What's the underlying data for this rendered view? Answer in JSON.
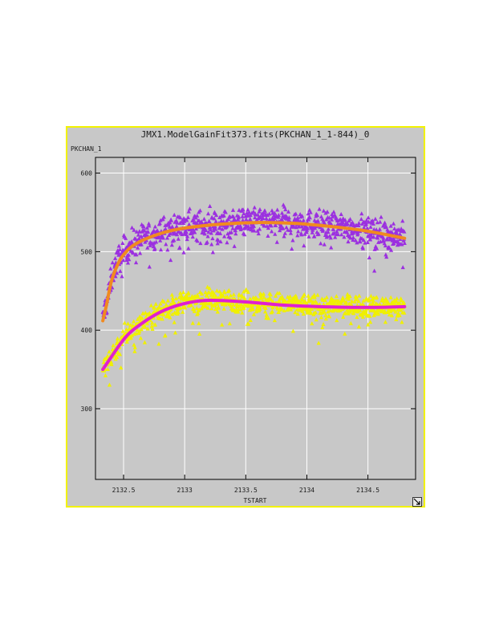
{
  "window": {
    "frame_color": "#f2f200",
    "background": "#c8c8c8"
  },
  "chart_data": {
    "type": "scatter",
    "title": "JMX1.ModelGainFit373.fits(PKCHAN_1_1-844)_0",
    "xlabel": "TSTART",
    "ylabel": "PKCHAN_1",
    "xlim": [
      2132.27,
      2134.89
    ],
    "ylim": [
      210,
      620
    ],
    "grid": true,
    "x_ticks": [
      2132.5,
      2133,
      2133.5,
      2134,
      2134.5
    ],
    "x_tick_labels": [
      "2132.5",
      "2133",
      "2133.5",
      "2134",
      "2134.5"
    ],
    "y_ticks": [
      300,
      400,
      500,
      600
    ],
    "y_tick_labels": [
      "300",
      "400",
      "500",
      "600"
    ],
    "series": [
      {
        "kind": "points",
        "marker": "triangle",
        "color": "#9b30e0",
        "x_range": [
          2132.33,
          2134.8
        ],
        "n_points": 900,
        "scatter": 9,
        "trend_anchors": [
          [
            2132.33,
            414
          ],
          [
            2132.38,
            448
          ],
          [
            2132.42,
            478
          ],
          [
            2132.48,
            497
          ],
          [
            2132.6,
            513
          ],
          [
            2132.8,
            525
          ],
          [
            2133.0,
            532
          ],
          [
            2133.3,
            536
          ],
          [
            2133.6,
            538
          ],
          [
            2133.9,
            537
          ],
          [
            2134.2,
            533
          ],
          [
            2134.5,
            527
          ],
          [
            2134.8,
            518
          ]
        ]
      },
      {
        "kind": "points",
        "marker": "triangle",
        "color": "#f0f000",
        "x_range": [
          2132.33,
          2134.8
        ],
        "n_points": 900,
        "scatter": 7,
        "trend_anchors": [
          [
            2132.33,
            349
          ],
          [
            2132.4,
            367
          ],
          [
            2132.5,
            390
          ],
          [
            2132.6,
            405
          ],
          [
            2132.8,
            425
          ],
          [
            2133.0,
            436
          ],
          [
            2133.2,
            439
          ],
          [
            2133.5,
            437
          ],
          [
            2133.8,
            433
          ],
          [
            2134.1,
            431
          ],
          [
            2134.5,
            430
          ],
          [
            2134.8,
            430
          ]
        ]
      },
      {
        "kind": "line",
        "color": "#f08a20",
        "width": 4,
        "points": [
          [
            2132.33,
            412
          ],
          [
            2132.36,
            432
          ],
          [
            2132.4,
            462
          ],
          [
            2132.45,
            483
          ],
          [
            2132.5,
            496
          ],
          [
            2132.6,
            510
          ],
          [
            2132.8,
            523
          ],
          [
            2133.0,
            530
          ],
          [
            2133.3,
            535
          ],
          [
            2133.6,
            537
          ],
          [
            2133.9,
            536
          ],
          [
            2134.2,
            532
          ],
          [
            2134.5,
            526
          ],
          [
            2134.8,
            517
          ]
        ]
      },
      {
        "kind": "line",
        "color": "#e020d0",
        "width": 4,
        "points": [
          [
            2132.33,
            350
          ],
          [
            2132.4,
            366
          ],
          [
            2132.5,
            388
          ],
          [
            2132.6,
            403
          ],
          [
            2132.8,
            423
          ],
          [
            2133.0,
            434
          ],
          [
            2133.2,
            438
          ],
          [
            2133.5,
            436
          ],
          [
            2133.8,
            432
          ],
          [
            2134.1,
            430
          ],
          [
            2134.5,
            429
          ],
          [
            2134.8,
            430
          ]
        ]
      }
    ]
  }
}
